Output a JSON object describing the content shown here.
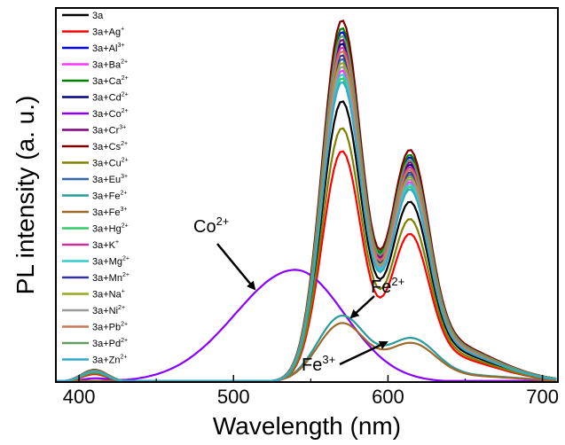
{
  "chart_data": {
    "type": "line",
    "xlabel": "Wavelength (nm)",
    "ylabel": "PL intensity (a. u.)",
    "xlim": [
      385,
      710
    ],
    "ylim": [
      0,
      1.0
    ],
    "xticks": [
      400,
      500,
      600,
      700
    ],
    "grid": false,
    "legend_position": "top-left",
    "series": [
      {
        "name": "3a",
        "ion": "",
        "charge": "",
        "color": "#000000",
        "peak": 0.73
      },
      {
        "name": "3a+Ag",
        "ion": "Ag",
        "charge": "+",
        "color": "#ff0000",
        "peak": 0.6
      },
      {
        "name": "3a+Al",
        "ion": "Al",
        "charge": "3+",
        "color": "#0000ff",
        "peak": 0.91
      },
      {
        "name": "3a+Ba",
        "ion": "Ba",
        "charge": "2+",
        "color": "#ff33ff",
        "peak": 0.81
      },
      {
        "name": "3a+Ca",
        "ion": "Ca",
        "charge": "2+",
        "color": "#008000",
        "peak": 0.92
      },
      {
        "name": "3a+Cd",
        "ion": "Cd",
        "charge": "2+",
        "color": "#000080",
        "peak": 0.88
      },
      {
        "name": "3a+Co",
        "ion": "Co",
        "charge": "2+",
        "color": "#8800ff",
        "peak": 0.3
      },
      {
        "name": "3a+Cr",
        "ion": "Cr",
        "charge": "3+",
        "color": "#800080",
        "peak": 0.89
      },
      {
        "name": "3a+Cs",
        "ion": "Cs",
        "charge": "2+",
        "color": "#800000",
        "peak": 0.94
      },
      {
        "name": "3a+Cu",
        "ion": "Cu",
        "charge": "2+",
        "color": "#808000",
        "peak": 0.66
      },
      {
        "name": "3a+Eu",
        "ion": "Eu",
        "charge": "3+",
        "color": "#3366aa",
        "peak": 0.84
      },
      {
        "name": "3a+Fe",
        "ion": "Fe",
        "charge": "2+",
        "color": "#2a9a9a",
        "peak": 0.18
      },
      {
        "name": "3a+Fe",
        "ion": "Fe",
        "charge": "3+",
        "color": "#a0672a",
        "peak": 0.16
      },
      {
        "name": "3a+Hg",
        "ion": "Hg",
        "charge": "2+",
        "color": "#33cc66",
        "peak": 0.79
      },
      {
        "name": "3a+K",
        "ion": "K",
        "charge": "+",
        "color": "#cc3399",
        "peak": 0.87
      },
      {
        "name": "3a+Mg",
        "ion": "Mg",
        "charge": "2+",
        "color": "#33cccc",
        "peak": 0.8
      },
      {
        "name": "3a+Mn",
        "ion": "Mn",
        "charge": "2+",
        "color": "#333399",
        "peak": 0.85
      },
      {
        "name": "3a+Na",
        "ion": "Na",
        "charge": "+",
        "color": "#99aa22",
        "peak": 0.83
      },
      {
        "name": "3a+Ni",
        "ion": "Ni",
        "charge": "2+",
        "color": "#999999",
        "peak": 0.82
      },
      {
        "name": "3a+Pb",
        "ion": "Pb",
        "charge": "2+",
        "color": "#cc7755",
        "peak": 0.86
      },
      {
        "name": "3a+Pd",
        "ion": "Pd",
        "charge": "2+",
        "color": "#669966",
        "peak": 0.9
      },
      {
        "name": "3a+Zn",
        "ion": "Zn",
        "charge": "2+",
        "color": "#33aacc",
        "peak": 0.78
      }
    ],
    "annotations": [
      {
        "ion": "Co",
        "charge": "2+"
      },
      {
        "ion": "Fe",
        "charge": "2+"
      },
      {
        "ion": "Fe",
        "charge": "3+"
      }
    ]
  }
}
